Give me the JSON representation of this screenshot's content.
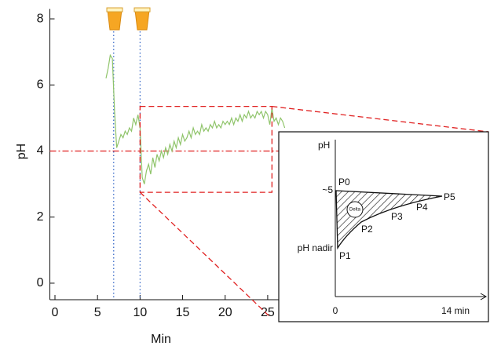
{
  "chart_data": {
    "type": "line",
    "x_label": "Min",
    "y_label": "pH",
    "xlim": [
      -0.6,
      27.5
    ],
    "ylim": [
      -0.5,
      8.3
    ],
    "xticks": [
      0,
      5,
      10,
      15,
      20,
      25
    ],
    "yticks": [
      0,
      2,
      4,
      6,
      8
    ],
    "x": [
      6.0,
      6.25,
      6.5,
      6.75,
      7.0,
      7.25,
      7.5,
      7.75,
      8.0,
      8.25,
      8.5,
      8.75,
      9.0,
      9.25,
      9.5,
      9.75,
      10.0,
      10.25,
      10.5,
      10.75,
      11.0,
      11.25,
      11.5,
      11.75,
      12.0,
      12.25,
      12.5,
      12.75,
      13.0,
      13.25,
      13.5,
      13.75,
      14.0,
      14.25,
      14.5,
      14.75,
      15.0,
      15.25,
      15.5,
      15.75,
      16.0,
      16.25,
      16.5,
      16.75,
      17.0,
      17.25,
      17.5,
      17.75,
      18.0,
      18.25,
      18.5,
      18.75,
      19.0,
      19.25,
      19.5,
      19.75,
      20.0,
      20.25,
      20.5,
      20.75,
      21.0,
      21.25,
      21.5,
      21.75,
      22.0,
      22.25,
      22.5,
      22.75,
      23.0,
      23.25,
      23.5,
      23.75,
      24.0,
      24.25,
      24.5,
      24.75,
      25.0,
      25.25,
      25.5,
      25.75,
      26.0,
      26.25,
      26.5,
      26.75,
      27.0
    ],
    "series": [
      {
        "color": "#8fc46a",
        "values": [
          6.2,
          6.5,
          6.9,
          6.8,
          5.2,
          4.1,
          4.3,
          4.5,
          4.4,
          4.6,
          4.5,
          4.7,
          4.6,
          5.0,
          4.8,
          5.1,
          4.7,
          3.2,
          3.0,
          3.4,
          3.6,
          3.3,
          3.8,
          3.5,
          3.9,
          3.7,
          4.0,
          3.8,
          4.1,
          3.9,
          4.2,
          4.0,
          4.3,
          4.1,
          4.4,
          4.2,
          4.5,
          4.3,
          4.4,
          4.6,
          4.4,
          4.7,
          4.5,
          4.6,
          4.5,
          4.8,
          4.6,
          4.7,
          4.6,
          4.8,
          4.7,
          4.9,
          4.7,
          4.8,
          4.7,
          4.9,
          4.8,
          4.9,
          4.8,
          5.0,
          4.8,
          5.0,
          4.9,
          5.1,
          4.9,
          5.1,
          5.0,
          5.2,
          5.0,
          5.1,
          5.0,
          5.2,
          5.1,
          5.2,
          5.0,
          5.2,
          5.1,
          4.8,
          5.3,
          4.9,
          5.0,
          4.8,
          5.0,
          4.9,
          4.7
        ]
      }
    ],
    "hline": 4,
    "vlines": [
      6.9,
      10
    ],
    "zoom_box": {
      "x": [
        10,
        25.5
      ],
      "y": [
        2.75,
        5.35
      ]
    },
    "inset": {
      "y_axis": "pH",
      "y_ticks": [
        "~5",
        "pH nadir"
      ],
      "x_ticks": [
        "0",
        "14 min"
      ],
      "points": [
        "P0",
        "P1",
        "P2",
        "P3",
        "P4",
        "P5"
      ],
      "area_label": "Delta"
    }
  }
}
